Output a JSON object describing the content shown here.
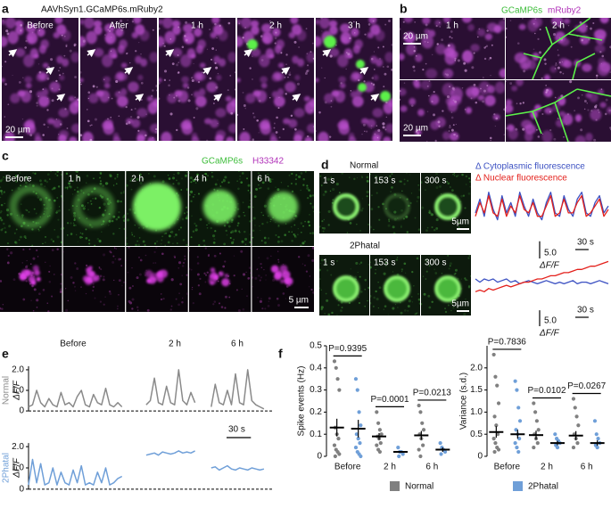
{
  "panel_a": {
    "letter": "a",
    "title": "AAVhSyn1.GCaMP6s.mRuby2",
    "frames": [
      "Before",
      "After",
      "1 h",
      "2 h",
      "3 h"
    ],
    "scale_bar": "20 µm"
  },
  "panel_b": {
    "letter": "b",
    "channels": [
      "GCaMP6s",
      "mRuby2"
    ],
    "frames": [
      "1 h",
      "2 h"
    ],
    "scale_bars": [
      "20 µm",
      "20 µm"
    ]
  },
  "panel_c": {
    "letter": "c",
    "channels": [
      "GCaMP6s",
      "H33342"
    ],
    "frames": [
      "Before",
      "1 h",
      "2 h",
      "4 h",
      "6 h"
    ],
    "scale_bar": "5 µm"
  },
  "panel_d": {
    "letter": "d",
    "rows": [
      {
        "label": "Normal",
        "times": [
          "1 s",
          "153 s",
          "300 s"
        ],
        "scale_bar": "5µm"
      },
      {
        "label": "2Phatal",
        "times": [
          "1 s",
          "153 s",
          "300 s"
        ],
        "scale_bar": "5µm"
      }
    ]
  },
  "panel_e": {
    "letter": "e",
    "segments": [
      "Before",
      "2 h",
      "6 h"
    ],
    "scale_bar": {
      "value": 30,
      "label": "30 s"
    }
  },
  "panel_f": {
    "letter": "f"
  },
  "chart_data": [
    {
      "type": "line",
      "label": "Normal",
      "ylabel": "ΔF/F",
      "xlim": [
        0,
        300
      ],
      "ylim": [
        -0.3,
        2.3
      ],
      "yticks": [
        0,
        {
          "value": 1,
          "label": "1.0"
        },
        {
          "value": 2,
          "label": "2.0"
        }
      ],
      "x": [
        0,
        5,
        10,
        15,
        20,
        25,
        30,
        35,
        40,
        45,
        50,
        55,
        60,
        65,
        70,
        75,
        80,
        85,
        90,
        95,
        100,
        105,
        110,
        115,
        130,
        145,
        150,
        155,
        160,
        165,
        170,
        175,
        180,
        185,
        190,
        195,
        200,
        205,
        215,
        225,
        230,
        235,
        240,
        245,
        250,
        255,
        260,
        265,
        270,
        275,
        280,
        285,
        290
      ],
      "series": [
        {
          "color": "#8a8a8a",
          "values": [
            0.2,
            0.3,
            1.0,
            0.4,
            0.2,
            0.6,
            0.3,
            0.2,
            0.9,
            0.3,
            0.4,
            0.2,
            0.7,
            1.0,
            0.3,
            0.2,
            0.8,
            0.4,
            0.3,
            1.1,
            0.3,
            0.2,
            0.4,
            0.2,
            null,
            0.3,
            0.5,
            1.6,
            0.4,
            0.3,
            1.2,
            0.4,
            0.3,
            2.0,
            0.5,
            0.3,
            0.9,
            0.4,
            null,
            0.2,
            1.3,
            0.4,
            0.3,
            1.0,
            0.3,
            1.8,
            0.4,
            0.3,
            2.0,
            0.5,
            0.3,
            0.2,
            0.1
          ]
        }
      ]
    },
    {
      "type": "line",
      "label": "2Phatal",
      "ylabel": "ΔF/F",
      "xlim": [
        0,
        300
      ],
      "ylim": [
        -0.3,
        2.3
      ],
      "yticks": [
        0,
        {
          "value": 1,
          "label": "1.0"
        },
        {
          "value": 2,
          "label": "2.0"
        }
      ],
      "x": [
        0,
        5,
        10,
        15,
        20,
        25,
        30,
        35,
        40,
        45,
        50,
        55,
        60,
        65,
        70,
        75,
        80,
        85,
        90,
        95,
        100,
        105,
        110,
        115,
        130,
        145,
        150,
        155,
        160,
        165,
        170,
        175,
        180,
        185,
        190,
        195,
        200,
        205,
        215,
        225,
        230,
        235,
        240,
        245,
        250,
        255,
        260,
        265,
        270,
        275,
        280,
        285,
        290
      ],
      "series": [
        {
          "color": "#6f9fd8",
          "values": [
            0.2,
            1.4,
            0.3,
            1.2,
            0.2,
            0.3,
            1.0,
            0.2,
            0.8,
            0.3,
            0.2,
            0.9,
            0.3,
            1.1,
            0.2,
            0.3,
            0.2,
            0.8,
            0.3,
            1.0,
            0.2,
            0.3,
            0.5,
            0.6,
            null,
            1.6,
            1.65,
            1.7,
            1.6,
            1.75,
            1.7,
            1.65,
            1.7,
            1.8,
            1.7,
            1.75,
            1.7,
            1.8,
            null,
            1.0,
            1.05,
            0.9,
            1.0,
            1.1,
            0.95,
            0.9,
            1.0,
            0.95,
            0.9,
            1.0,
            0.95,
            0.9,
            0.95
          ]
        }
      ]
    },
    {
      "type": "dot",
      "ylabel": "Spike events (Hz)",
      "categories": [
        "Before",
        "2 h",
        "6 h"
      ],
      "ylim": [
        0,
        0.5
      ],
      "yticks": [
        0,
        0.1,
        0.2,
        0.3,
        0.4,
        0.5
      ],
      "annotations": [
        "P=0.9395",
        "P=0.0001",
        "P=0.0213"
      ],
      "series": [
        {
          "name": "Normal",
          "color": "#808080",
          "means": [
            0.13,
            0.09,
            0.095
          ],
          "errors": [
            0.04,
            0.015,
            0.02
          ],
          "points": [
            [
              0.43,
              0.4,
              0.35,
              0.3,
              0.13,
              0.1,
              0.08,
              0.05,
              0.03,
              0.02,
              0.01,
              0.0
            ],
            [
              0.2,
              0.15,
              0.12,
              0.1,
              0.09,
              0.08,
              0.06,
              0.05,
              0.03,
              0.02
            ],
            [
              0.23,
              0.2,
              0.15,
              0.12,
              0.1,
              0.08,
              0.05,
              0.03,
              0.0
            ]
          ]
        },
        {
          "name": "2Phatal",
          "color": "#6f9fd8",
          "means": [
            0.125,
            0.02,
            0.03
          ],
          "errors": [
            0.04,
            0.003,
            0.01
          ],
          "points": [
            [
              0.35,
              0.3,
              0.2,
              0.14,
              0.1,
              0.08,
              0.06,
              0.04,
              0.02,
              0.01,
              0.0
            ],
            [
              0.04,
              0.02,
              0.02,
              0.01,
              0.0
            ],
            [
              0.06,
              0.04,
              0.03,
              0.02,
              0.01
            ]
          ]
        }
      ]
    },
    {
      "type": "dot",
      "ylabel": "Variance (s.d.)",
      "categories": [
        "Before",
        "2 h",
        "6 h"
      ],
      "ylim": [
        0,
        2.5
      ],
      "yticks": [
        0,
        0.5,
        {
          "value": 1,
          "label": "1.0"
        },
        1.5,
        {
          "value": 2,
          "label": "2.0"
        }
      ],
      "annotations": [
        "P=0.7836",
        "P=0.0102",
        "P=0.0267"
      ],
      "series": [
        {
          "color": "#808080",
          "means": [
            0.55,
            0.48,
            0.47
          ],
          "errors": [
            0.13,
            0.1,
            0.1
          ],
          "points": [
            [
              2.3,
              1.8,
              1.6,
              1.2,
              0.9,
              0.7,
              0.5,
              0.4,
              0.3,
              0.2,
              0.15,
              0.1
            ],
            [
              1.2,
              1.0,
              0.8,
              0.6,
              0.5,
              0.4,
              0.3,
              0.2
            ],
            [
              1.3,
              1.1,
              0.9,
              0.7,
              0.5,
              0.4,
              0.3,
              0.2
            ]
          ]
        },
        {
          "color": "#6f9fd8",
          "means": [
            0.5,
            0.3,
            0.3
          ],
          "errors": [
            0.1,
            0.05,
            0.06
          ],
          "points": [
            [
              1.7,
              1.5,
              1.1,
              0.8,
              0.6,
              0.5,
              0.4,
              0.3,
              0.2,
              0.1
            ],
            [
              0.5,
              0.4,
              0.35,
              0.3,
              0.25,
              0.2
            ],
            [
              0.8,
              0.5,
              0.4,
              0.3,
              0.25,
              0.2
            ]
          ]
        }
      ]
    },
    {
      "type": "trace",
      "xlim": [
        0,
        300
      ],
      "ylim": [
        0,
        14
      ],
      "x": [
        0,
        10,
        20,
        30,
        40,
        50,
        60,
        70,
        80,
        90,
        100,
        110,
        120,
        130,
        140,
        150,
        160,
        170,
        180,
        190,
        200,
        210,
        220,
        230,
        240,
        250,
        260,
        270,
        280,
        290,
        300
      ],
      "yscale": {
        "value": 5,
        "label": "5.0"
      },
      "yunit": "ΔF/F",
      "xscale": {
        "value": 30,
        "label": "30 s"
      },
      "series": [
        {
          "name": "Δ Cytoplasmic fluorescence",
          "color": "#3b50c2",
          "values": [
            6,
            10,
            5,
            12,
            7,
            4,
            11,
            6,
            9,
            5,
            12,
            8,
            5,
            10,
            6,
            4,
            9,
            12,
            6,
            5,
            11,
            7,
            5,
            10,
            12,
            6,
            5,
            9,
            11,
            6,
            8
          ]
        },
        {
          "name": "Δ Nuclear fluorescence",
          "color": "#e3201b",
          "values": [
            5,
            9,
            6,
            11,
            6,
            5,
            10,
            5,
            8,
            6,
            11,
            7,
            6,
            9,
            5,
            5,
            8,
            11,
            5,
            6,
            10,
            6,
            6,
            9,
            11,
            5,
            6,
            8,
            10,
            5,
            7
          ]
        }
      ]
    },
    {
      "type": "trace",
      "xlim": [
        0,
        300
      ],
      "ylim": [
        0,
        14
      ],
      "x": [
        0,
        10,
        20,
        30,
        40,
        50,
        60,
        70,
        80,
        90,
        100,
        110,
        120,
        130,
        140,
        150,
        160,
        170,
        180,
        190,
        200,
        210,
        220,
        230,
        240,
        250,
        260,
        270,
        280,
        290,
        300
      ],
      "yscale": {
        "value": 5,
        "label": "5.0"
      },
      "yunit": "ΔF/F",
      "xscale": {
        "value": 30,
        "label": "30 s"
      },
      "series": [
        {
          "color": "#3b50c2",
          "values": [
            7,
            6,
            7,
            6.5,
            7,
            6,
            6.5,
            7,
            6,
            6.5,
            5.5,
            6,
            6.5,
            6,
            5.5,
            6,
            6.5,
            6,
            5.5,
            6,
            5.5,
            6,
            6.5,
            5.5,
            6,
            6,
            5.5,
            6,
            6.5,
            6,
            5.5
          ]
        },
        {
          "color": "#e3201b",
          "values": [
            3,
            3.5,
            3,
            4,
            3.5,
            4,
            4.5,
            5,
            4.5,
            5,
            5.5,
            6,
            6,
            6.5,
            7,
            7,
            7.5,
            8,
            8,
            8.5,
            9,
            9,
            9.5,
            10,
            10,
            10.5,
            11,
            11,
            11.5,
            12,
            12.5
          ]
        }
      ]
    }
  ]
}
